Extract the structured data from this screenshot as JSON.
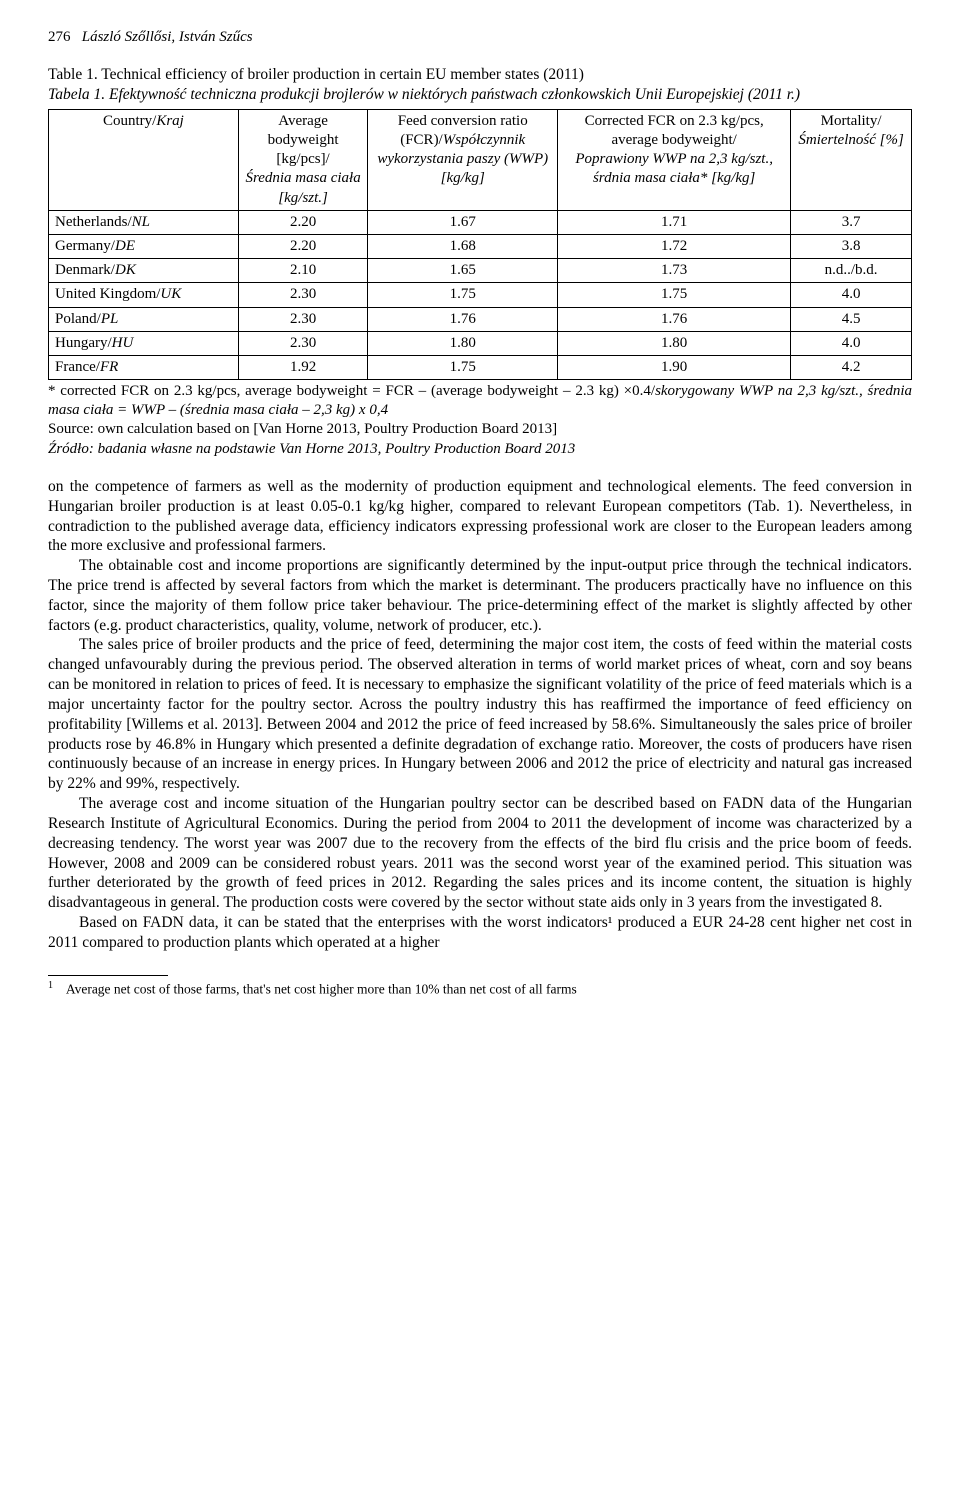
{
  "page_number": "276",
  "authors": "László Szőllősi, István Szűcs",
  "table_title": "Table 1. Technical efficiency of broiler production in certain EU member states (2011)",
  "table_subtitle": "Tabela 1. Efektywność techniczna produkcji brojlerów w niektórych państwach członkowskich Unii Europejskiej (2011 r.)",
  "columns": [
    {
      "en": "Country/",
      "pl": "Kraj"
    },
    {
      "en": "Average bodyweight [kg/pcs]/",
      "pl": "Średnia masa ciała [kg/szt.]"
    },
    {
      "en": "Feed conversion ratio (FCR)/",
      "pl": "Współczynnik wykorzystania paszy (WWP) [kg/kg]"
    },
    {
      "en": "Corrected FCR on 2.3 kg/pcs, average bodyweight/",
      "pl": "Poprawiony WWP na 2,3 kg/szt., śrdnia masa ciała* [kg/kg]"
    },
    {
      "en": "Mortality/",
      "pl": "Śmiertelność [%]"
    }
  ],
  "rows": [
    {
      "country_en": "Netherlands/",
      "country_pl": "NL",
      "bw": "2.20",
      "fcr": "1.67",
      "cfcr": "1.71",
      "mort": "3.7"
    },
    {
      "country_en": "Germany/",
      "country_pl": "DE",
      "bw": "2.20",
      "fcr": "1.68",
      "cfcr": "1.72",
      "mort": "3.8"
    },
    {
      "country_en": "Denmark/",
      "country_pl": "DK",
      "bw": "2.10",
      "fcr": "1.65",
      "cfcr": "1.73",
      "mort": "n.d../b.d."
    },
    {
      "country_en": "United Kingdom/",
      "country_pl": "UK",
      "bw": "2.30",
      "fcr": "1.75",
      "cfcr": "1.75",
      "mort": "4.0"
    },
    {
      "country_en": "Poland/",
      "country_pl": "PL",
      "bw": "2.30",
      "fcr": "1.76",
      "cfcr": "1.76",
      "mort": "4.5"
    },
    {
      "country_en": "Hungary/",
      "country_pl": "HU",
      "bw": "2.30",
      "fcr": "1.80",
      "cfcr": "1.80",
      "mort": "4.0"
    },
    {
      "country_en": "France/",
      "country_pl": "FR",
      "bw": "1.92",
      "fcr": "1.75",
      "cfcr": "1.90",
      "mort": "4.2"
    }
  ],
  "table_footnote_1a": "* corrected FCR on 2.3 kg/pcs, average bodyweight = FCR – (average bodyweight – 2.3 kg) ×0.4/",
  "table_footnote_1b": "skorygowany WWP na 2,3 kg/szt., średnia masa ciała = WWP – (średnia masa ciała – 2,3 kg) x 0,4",
  "table_source_en": "Source: own calculation based on [Van Horne 2013, Poultry Production Board 2013]",
  "table_source_pl": "Źródło: badania własne na podstawie Van Horne 2013, Poultry Production Board 2013",
  "paragraphs": [
    "on the competence of farmers as well as the modernity of production equipment and technological elements. The feed conversion in Hungarian broiler production is at least 0.05-0.1 kg/kg higher, compared to relevant European competitors (Tab. 1). Nevertheless, in contradiction to the published average data, efficiency indicators expressing professional work are closer to the European leaders among the more exclusive and professional farmers.",
    "The obtainable cost and income proportions are significantly determined by the input-output price through the technical indicators. The price trend is affected by several factors from which the market is determinant. The producers practically have no influence on this factor, since the majority of them follow price taker behaviour. The price-determining effect of the market is slightly affected by other factors (e.g. product characteristics, quality, volume, network of producer, etc.).",
    "The sales price of broiler products and the price of feed, determining the major cost item, the costs of feed within the material costs changed unfavourably during the previous period. The observed alteration in terms of world market prices of wheat, corn and soy beans can be monitored in relation to prices of feed. It is necessary to emphasize the significant volatility of the price of feed materials which is a major uncertainty factor for the poultry sector. Across the poultry industry this has reaffirmed the importance of feed efficiency on profitability [Willems et al. 2013]. Between 2004 and 2012 the price of feed increased by 58.6%. Simultaneously the sales price of broiler products rose by 46.8% in Hungary which presented a definite degradation of exchange ratio. Moreover, the costs of producers have risen continuously because of an increase in energy prices. In Hungary between 2006 and 2012 the price of electricity and natural gas increased by 22% and 99%, respectively.",
    "The average cost and income situation of the Hungarian poultry sector can be described based on FADN data of the Hungarian Research Institute of Agricultural Economics. During the period from 2004 to 2011 the development of income was characterized by a decreasing tendency. The worst year was 2007 due to the recovery from the effects of the bird flu crisis and the price boom of feeds. However, 2008 and 2009 can be considered robust years. 2011 was the second worst year of the examined period. This situation was further deteriorated by the growth of feed prices in 2012. Regarding the sales prices and its income content, the situation is highly disadvantageous in general. The production costs were covered by the sector without state aids only in 3 years from the investigated 8.",
    "Based on FADN data, it can be stated that the enterprises with the worst indicators¹ produced a EUR 24-28 cent higher net cost in 2011 compared to production plants which operated at a higher"
  ],
  "footnote_marker": "1",
  "footnote_text": "Average net cost of those farms, that's net cost higher more than 10% than net cost of all farms"
}
